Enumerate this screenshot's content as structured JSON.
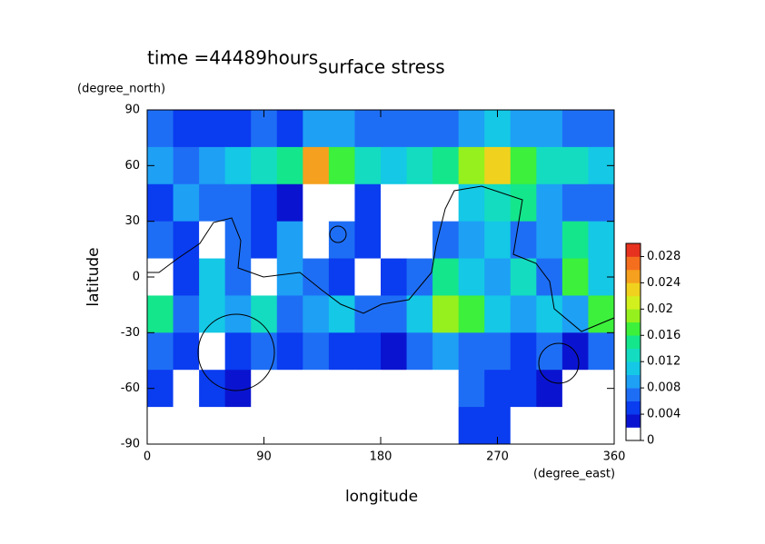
{
  "chart_data": {
    "type": "contourf",
    "title": "surface stress",
    "subtitle": "time =44489hours",
    "x_label": "longitude",
    "x_units": "(degree_east)",
    "y_label": "latitude",
    "y_units": "(degree_north)",
    "xlim": [
      0,
      360
    ],
    "ylim": [
      -90,
      90
    ],
    "xticks": [
      0,
      90,
      180,
      270,
      360
    ],
    "yticks": [
      -90,
      -60,
      -30,
      0,
      30,
      60,
      90
    ],
    "x": [
      10,
      30,
      50,
      70,
      90,
      110,
      130,
      150,
      170,
      190,
      210,
      230,
      250,
      270,
      290,
      310,
      330,
      350
    ],
    "y": [
      80,
      60,
      40,
      20,
      0,
      -20,
      -40,
      -60,
      -80
    ],
    "cell_width": 20,
    "cell_height": 20,
    "z": [
      [
        0.006,
        0.005,
        0.004,
        0.005,
        0.006,
        0.005,
        0.008,
        0.008,
        0.006,
        0.006,
        0.006,
        0.006,
        0.008,
        0.01,
        0.008,
        0.008,
        0.006,
        0.006
      ],
      [
        0.008,
        0.006,
        0.008,
        0.01,
        0.012,
        0.014,
        0.024,
        0.016,
        0.012,
        0.01,
        0.012,
        0.014,
        0.018,
        0.022,
        0.016,
        0.012,
        0.012,
        0.01
      ],
      [
        0.004,
        0.008,
        0.006,
        0.006,
        0.004,
        0.002,
        0,
        0,
        0.004,
        0,
        0,
        0,
        0.01,
        0.012,
        0.014,
        0.008,
        0.006,
        0.006
      ],
      [
        0.006,
        0.004,
        0,
        0.006,
        0.004,
        0.008,
        0,
        0.006,
        0.004,
        0,
        0,
        0.006,
        0.008,
        0.01,
        0.006,
        0.008,
        0.014,
        0.01
      ],
      [
        0,
        0.004,
        0.01,
        0.006,
        0,
        0.008,
        0.006,
        0.004,
        0,
        0.004,
        0.006,
        0.014,
        0.01,
        0.008,
        0.012,
        0.006,
        0.016,
        0.01
      ],
      [
        0.014,
        0.006,
        0.01,
        0.008,
        0.012,
        0.006,
        0.008,
        0.01,
        0.006,
        0.006,
        0.01,
        0.018,
        0.016,
        0.01,
        0.008,
        0.01,
        0.008,
        0.016
      ],
      [
        0.006,
        0.004,
        0,
        0.004,
        0.006,
        0.004,
        0.006,
        0.004,
        0.004,
        0.002,
        0.006,
        0.008,
        0.006,
        0.006,
        0.004,
        0.006,
        0.002,
        0.006
      ],
      [
        0.004,
        0,
        0.004,
        0.002,
        0,
        0,
        0,
        0,
        0,
        0,
        0,
        0,
        0.006,
        0.004,
        0.004,
        0.002,
        0,
        0
      ],
      [
        0,
        0,
        0,
        0,
        0,
        0,
        0,
        0,
        0,
        0,
        0,
        0,
        0.004,
        0.004,
        0,
        0,
        0,
        0
      ]
    ],
    "clim": [
      0,
      0.03
    ],
    "colors": [
      "#ffffff",
      "#0a14d0",
      "#0a3cf0",
      "#1e6ef5",
      "#1ea0f5",
      "#14c8e6",
      "#14dcc0",
      "#14e68c",
      "#3cf03c",
      "#96f01e",
      "#d2f01e",
      "#f0d21e",
      "#f5a01e",
      "#f56e1e",
      "#e6321e"
    ],
    "colorbar_ticks": [
      0,
      0.004,
      0.008,
      0.012,
      0.016,
      0.02,
      0.024,
      0.028
    ]
  }
}
